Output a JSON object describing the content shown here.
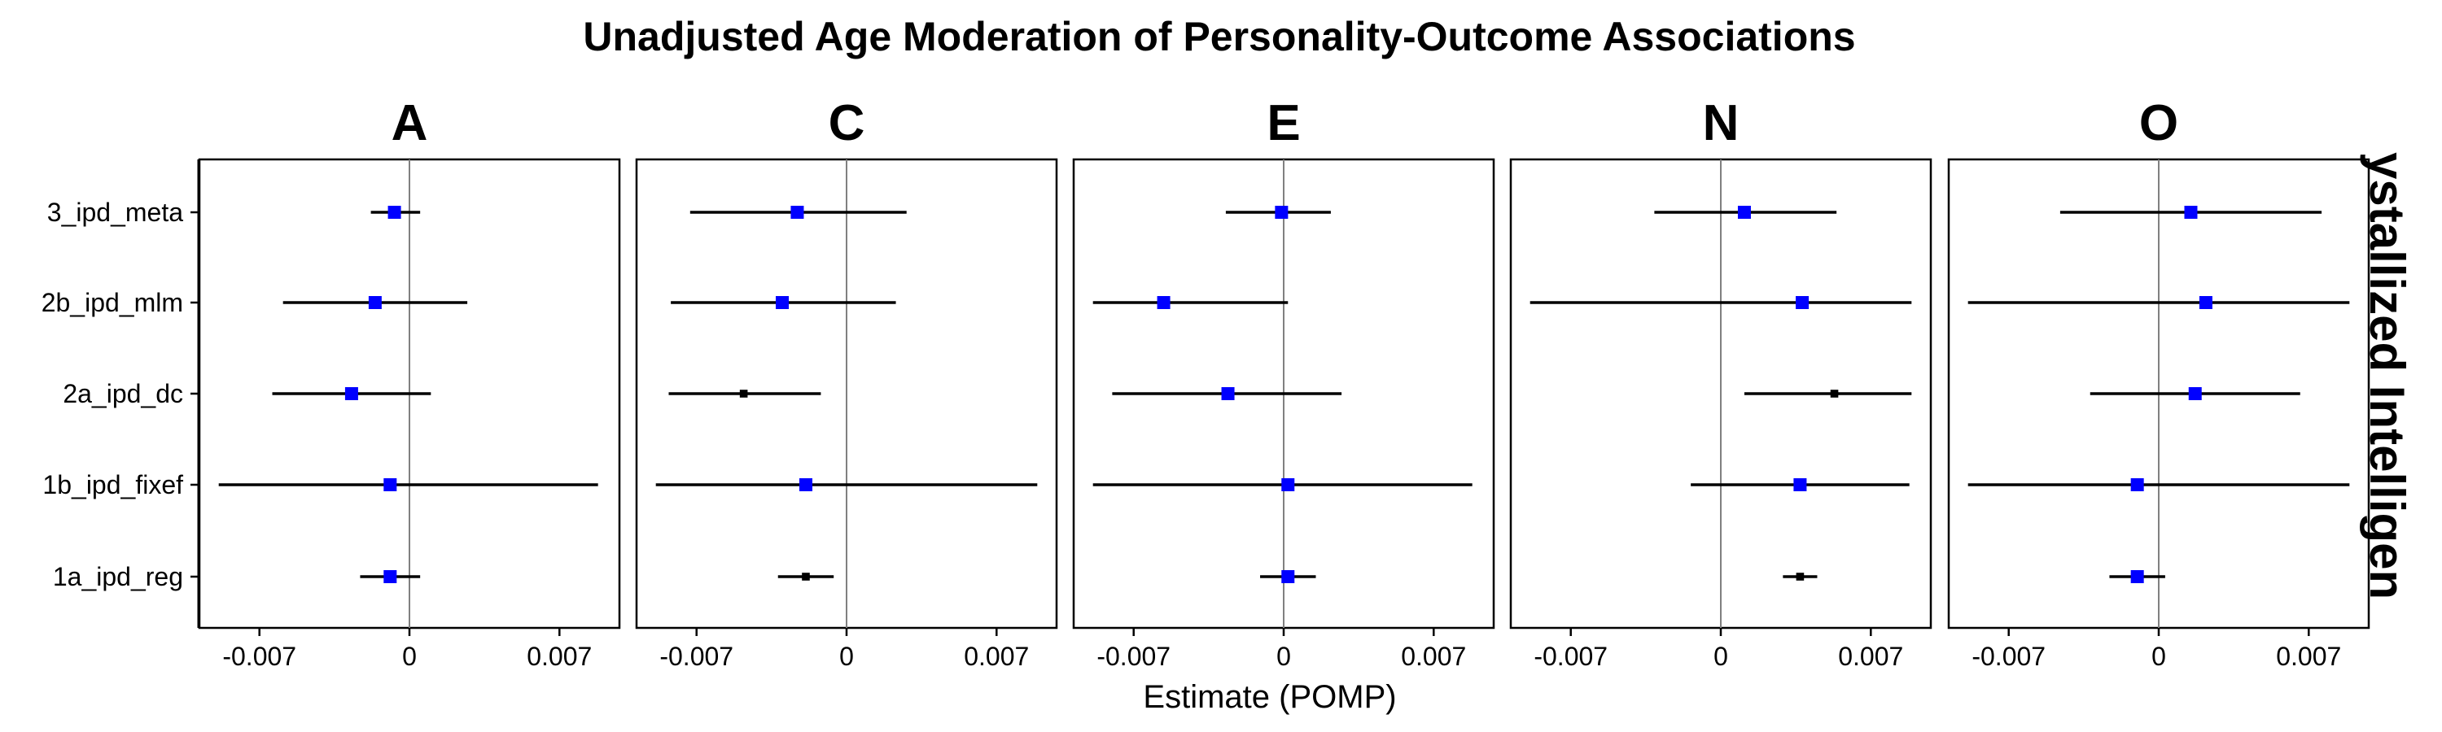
{
  "chart_data": {
    "type": "forest",
    "title": "Unadjusted Age Moderation of Personality-Outcome Associations",
    "xlabel": "Estimate (POMP)",
    "ylabel": "",
    "strip_label": "ystallized Intelligen",
    "x_ticks": [
      -0.007,
      0,
      0.007
    ],
    "x_tick_labels": [
      "-0.007",
      "0",
      "0.007"
    ],
    "xlim": [
      -0.0098,
      0.0098
    ],
    "grid": false,
    "reference_line": 0,
    "y_categories": [
      "3_ipd_meta",
      "2b_ipd_mlm",
      "2a_ipd_dc",
      "1b_ipd_fixef",
      "1a_ipd_reg"
    ],
    "colors": {
      "significant": "#000000",
      "nonsignificant": "#0000ff",
      "ci_line": "#000000",
      "reference": "#808080"
    },
    "panels": [
      {
        "facet": "A",
        "rows": [
          {
            "method": "3_ipd_meta",
            "estimate": -0.0007,
            "lower": -0.0018,
            "upper": 0.0005,
            "significant": false
          },
          {
            "method": "2b_ipd_mlm",
            "estimate": -0.0016,
            "lower": -0.0059,
            "upper": 0.0027,
            "significant": false
          },
          {
            "method": "2a_ipd_dc",
            "estimate": -0.0027,
            "lower": -0.0064,
            "upper": 0.001,
            "significant": false
          },
          {
            "method": "1b_ipd_fixef",
            "estimate": -0.0009,
            "lower": -0.0089,
            "upper": 0.0088,
            "significant": false
          },
          {
            "method": "1a_ipd_reg",
            "estimate": -0.0009,
            "lower": -0.0023,
            "upper": 0.0005,
            "significant": false
          }
        ]
      },
      {
        "facet": "C",
        "rows": [
          {
            "method": "3_ipd_meta",
            "estimate": -0.0023,
            "lower": -0.0073,
            "upper": 0.0028,
            "significant": false
          },
          {
            "method": "2b_ipd_mlm",
            "estimate": -0.003,
            "lower": -0.0082,
            "upper": 0.0023,
            "significant": false
          },
          {
            "method": "2a_ipd_dc",
            "estimate": -0.0048,
            "lower": -0.0083,
            "upper": -0.0012,
            "significant": true
          },
          {
            "method": "1b_ipd_fixef",
            "estimate": -0.0019,
            "lower": -0.0089,
            "upper": 0.0089,
            "significant": false
          },
          {
            "method": "1a_ipd_reg",
            "estimate": -0.0019,
            "lower": -0.0032,
            "upper": -0.0006,
            "significant": true
          }
        ]
      },
      {
        "facet": "E",
        "rows": [
          {
            "method": "3_ipd_meta",
            "estimate": -0.0001,
            "lower": -0.0027,
            "upper": 0.0022,
            "significant": false
          },
          {
            "method": "2b_ipd_mlm",
            "estimate": -0.0056,
            "lower": -0.0089,
            "upper": 0.0002,
            "significant": false
          },
          {
            "method": "2a_ipd_dc",
            "estimate": -0.0026,
            "lower": -0.008,
            "upper": 0.0027,
            "significant": false
          },
          {
            "method": "1b_ipd_fixef",
            "estimate": 0.0002,
            "lower": -0.0089,
            "upper": 0.0088,
            "significant": false
          },
          {
            "method": "1a_ipd_reg",
            "estimate": 0.0002,
            "lower": -0.0011,
            "upper": 0.0015,
            "significant": false
          }
        ]
      },
      {
        "facet": "N",
        "rows": [
          {
            "method": "3_ipd_meta",
            "estimate": 0.0011,
            "lower": -0.0031,
            "upper": 0.0054,
            "significant": false
          },
          {
            "method": "2b_ipd_mlm",
            "estimate": 0.0038,
            "lower": -0.0089,
            "upper": 0.0089,
            "significant": false
          },
          {
            "method": "2a_ipd_dc",
            "estimate": 0.0053,
            "lower": 0.0011,
            "upper": 0.0089,
            "significant": true
          },
          {
            "method": "1b_ipd_fixef",
            "estimate": 0.0037,
            "lower": -0.0014,
            "upper": 0.0088,
            "significant": false
          },
          {
            "method": "1a_ipd_reg",
            "estimate": 0.0037,
            "lower": 0.0029,
            "upper": 0.0045,
            "significant": true
          }
        ]
      },
      {
        "facet": "O",
        "rows": [
          {
            "method": "3_ipd_meta",
            "estimate": 0.0015,
            "lower": -0.0046,
            "upper": 0.0076,
            "significant": false
          },
          {
            "method": "2b_ipd_mlm",
            "estimate": 0.0022,
            "lower": -0.0089,
            "upper": 0.0089,
            "significant": false
          },
          {
            "method": "2a_ipd_dc",
            "estimate": 0.0017,
            "lower": -0.0032,
            "upper": 0.0066,
            "significant": false
          },
          {
            "method": "1b_ipd_fixef",
            "estimate": -0.001,
            "lower": -0.0089,
            "upper": 0.0089,
            "significant": false
          },
          {
            "method": "1a_ipd_reg",
            "estimate": -0.001,
            "lower": -0.0023,
            "upper": 0.0003,
            "significant": false
          }
        ]
      }
    ]
  }
}
